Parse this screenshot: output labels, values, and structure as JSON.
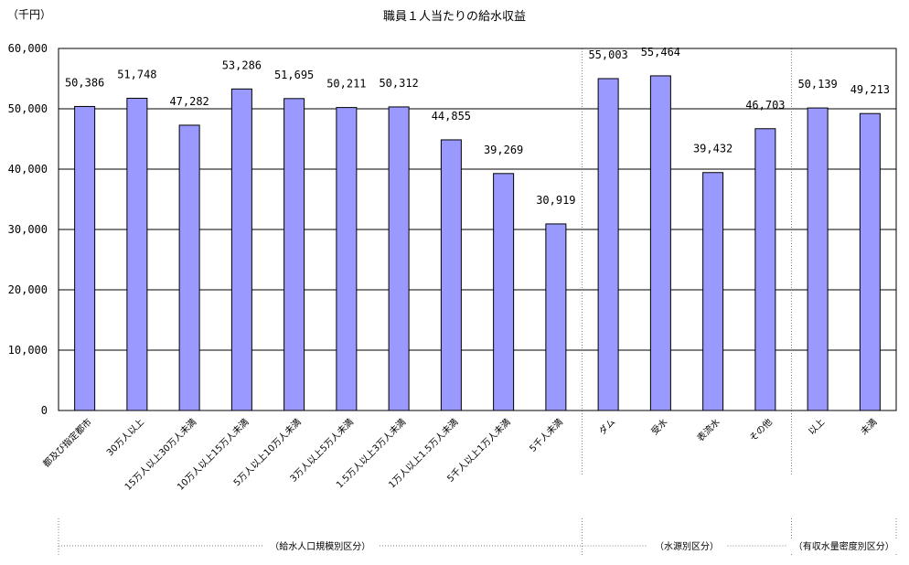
{
  "chart_data": {
    "type": "bar",
    "title": "職員１人当たりの給水収益",
    "unit_label": "（千円）",
    "categories": [
      "都及び指定都市",
      "30万人以上",
      "15万人以上30万人未満",
      "10万人以上15万人未満",
      "5万人以上10万人未満",
      "3万人以上5万人未満",
      "1.5万人以上3万人未満",
      "1万人以上1.5万人未満",
      "5千人以上1万人未満",
      "5千人未満",
      "ダム",
      "受水",
      "表流水",
      "その他",
      "以上",
      "未満"
    ],
    "values": [
      50386,
      51748,
      47282,
      53286,
      51695,
      50211,
      50312,
      44855,
      39269,
      30919,
      55003,
      55464,
      39432,
      46703,
      50139,
      49213
    ],
    "value_labels": [
      "50,386",
      "51,748",
      "47,282",
      "53,286",
      "51,695",
      "50,211",
      "50,312",
      "44,855",
      "39,269",
      "30,919",
      "55,003",
      "55,464",
      "39,432",
      "46,703",
      "50,139",
      "49,213"
    ],
    "ylim": [
      0,
      60000
    ],
    "yticks": [
      "0",
      "10,000",
      "20,000",
      "30,000",
      "40,000",
      "50,000",
      "60,000"
    ],
    "grid": true,
    "bar_color": "#9999ff",
    "groups": [
      {
        "label": "（給水人口規模別区分）",
        "count": 10
      },
      {
        "label": "（水源別区分）",
        "count": 4
      },
      {
        "label": "（有収水量密度別区分）",
        "count": 2
      }
    ]
  }
}
